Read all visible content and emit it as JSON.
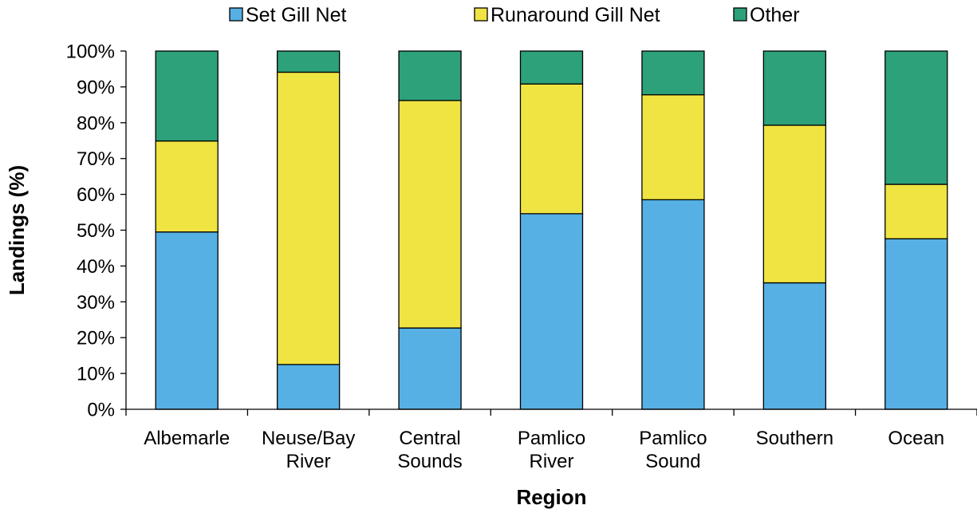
{
  "chart_data": {
    "type": "bar",
    "stacked": true,
    "categories": [
      [
        "Albemarle"
      ],
      [
        "Neuse/Bay",
        "River"
      ],
      [
        "Central",
        "Sounds"
      ],
      [
        "Pamlico",
        "River"
      ],
      [
        "Pamlico",
        "Sound"
      ],
      [
        "Southern"
      ],
      [
        "Ocean"
      ]
    ],
    "series": [
      {
        "name": "Set Gill Net",
        "color": "#56b0e4",
        "values": [
          49.5,
          12.5,
          22.7,
          54.6,
          58.5,
          35.3,
          47.6
        ]
      },
      {
        "name": "Runaround Gill Net",
        "color": "#f0e442",
        "values": [
          25.4,
          81.6,
          63.5,
          36.2,
          29.3,
          44.0,
          15.2
        ]
      },
      {
        "name": "Other",
        "color": "#2ca17a",
        "values": [
          25.1,
          5.9,
          13.8,
          9.2,
          12.2,
          20.7,
          37.2
        ]
      }
    ],
    "yticks": [
      "0%",
      "10%",
      "20%",
      "30%",
      "40%",
      "50%",
      "60%",
      "70%",
      "80%",
      "90%",
      "100%"
    ],
    "ylim": [
      0,
      100
    ],
    "xlabel": "Region",
    "ylabel": "Landings (%)",
    "legend_position": "top",
    "grid": false
  }
}
